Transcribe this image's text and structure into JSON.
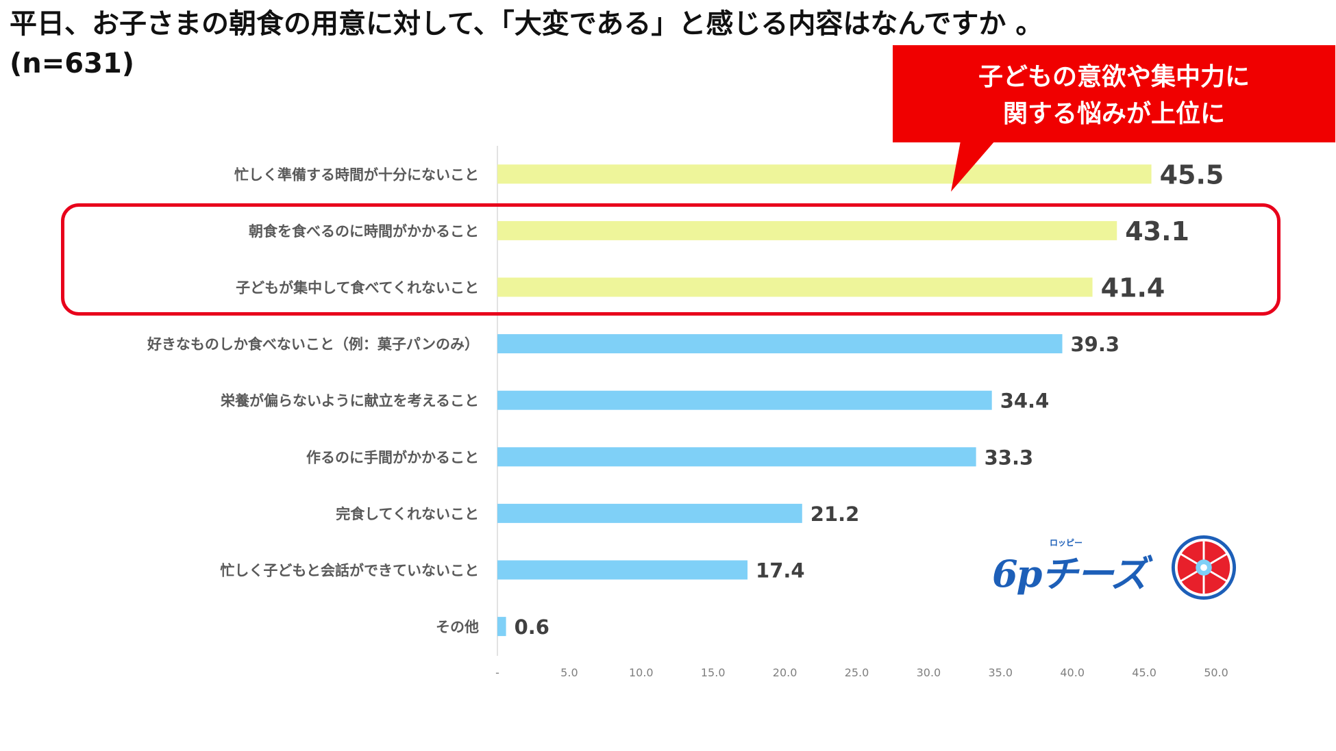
{
  "title": {
    "line1": "平日、お子さまの朝食の用意に対して、「大変である」と感じる内容はなんですか 。",
    "line2": "(n=631)"
  },
  "callout": {
    "line1": "子どもの意欲や集中力に",
    "line2": "関する悩みが上位に"
  },
  "logo": {
    "text": "6pチーズ",
    "sub": "ロッピー"
  },
  "colors": {
    "highlight_bar": "#eef59a",
    "normal_bar": "#7fd0f7",
    "callout": "#f00000",
    "frame": "#e8001b",
    "logo": "#1d5fb8"
  },
  "chart_data": {
    "type": "bar",
    "orientation": "horizontal",
    "categories": [
      "忙しく準備する時間が十分にないこと",
      "朝食を食べるのに時間がかかること",
      "子どもが集中して食べてくれないこと",
      "好きなものしか食べないこと（例：菓子パンのみ）",
      "栄養が偏らないように献立を考えること",
      "作るのに手間がかかること",
      "完食してくれないこと",
      "忙しく子どもと会話ができていないこと",
      "その他"
    ],
    "values": [
      45.5,
      43.1,
      41.4,
      39.3,
      34.4,
      33.3,
      21.2,
      17.4,
      0.6
    ],
    "value_labels": [
      "45.5",
      "43.1",
      "41.4",
      "39.3",
      "34.4",
      "33.3",
      "21.2",
      "17.4",
      "0.6"
    ],
    "highlighted": [
      true,
      true,
      true,
      false,
      false,
      false,
      false,
      false,
      false
    ],
    "xlim": [
      0,
      50
    ],
    "xticks": [
      "-",
      "5.0",
      "10.0",
      "15.0",
      "20.0",
      "25.0",
      "30.0",
      "35.0",
      "40.0",
      "45.0",
      "50.0"
    ],
    "title": "",
    "xlabel": "",
    "ylabel": ""
  }
}
